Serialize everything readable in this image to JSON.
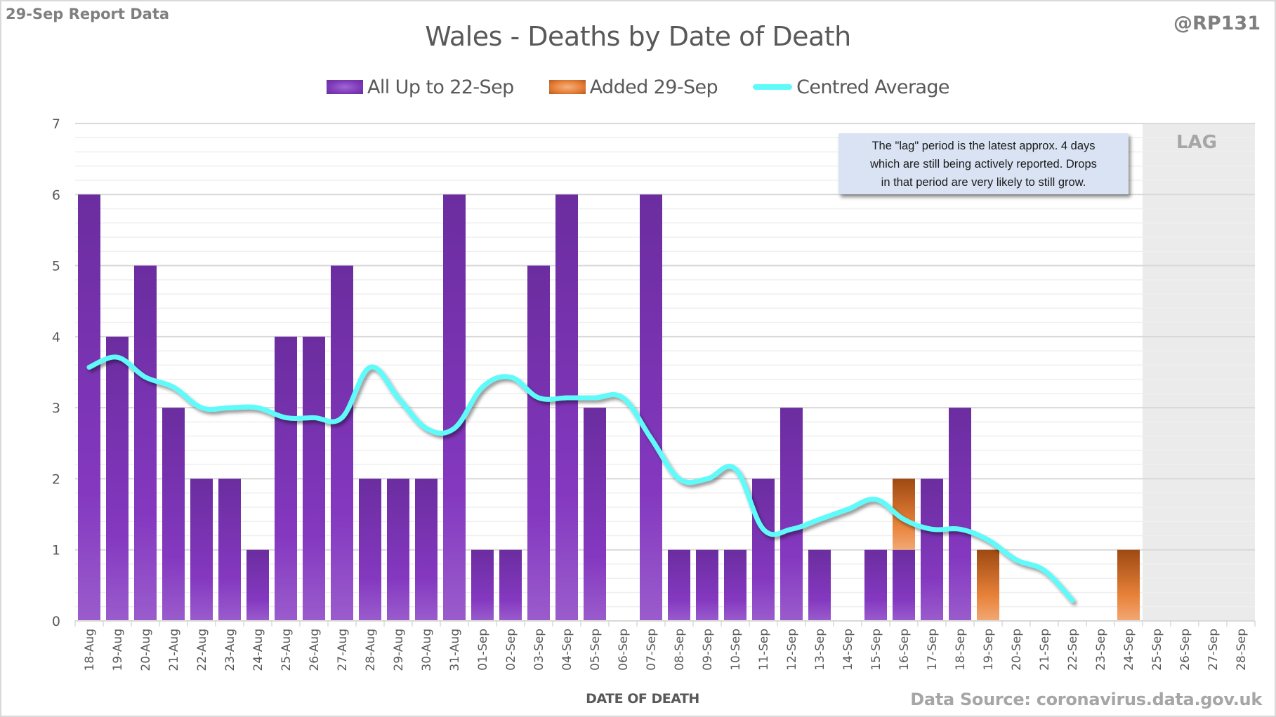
{
  "header": {
    "report_label": "29-Sep Report Data",
    "handle": "@RP131"
  },
  "footer": {
    "source": "Data Source: coronavirus.data.gov.uk"
  },
  "colors": {
    "purple": "#7e3ab8",
    "orange": "#e8813a",
    "cyan": "#5ffbfb",
    "lag_band": "#ebebeb",
    "note_bg": "#dae3f3"
  },
  "chart_data": {
    "type": "bar",
    "stacked": true,
    "title": "Wales - Deaths by Date of Death",
    "xlabel": "DATE OF DEATH",
    "ylabel": "",
    "ylim": [
      0,
      7
    ],
    "yticks": [
      0,
      1,
      2,
      3,
      4,
      5,
      6,
      7
    ],
    "grid": true,
    "minor_grid_step": 0.2,
    "legend_position": "top-center",
    "categories": [
      "18-Aug",
      "19-Aug",
      "20-Aug",
      "21-Aug",
      "22-Aug",
      "23-Aug",
      "24-Aug",
      "25-Aug",
      "26-Aug",
      "27-Aug",
      "28-Aug",
      "29-Aug",
      "30-Aug",
      "31-Aug",
      "01-Sep",
      "02-Sep",
      "03-Sep",
      "04-Sep",
      "05-Sep",
      "06-Sep",
      "07-Sep",
      "08-Sep",
      "09-Sep",
      "10-Sep",
      "11-Sep",
      "12-Sep",
      "13-Sep",
      "14-Sep",
      "15-Sep",
      "16-Sep",
      "17-Sep",
      "18-Sep",
      "19-Sep",
      "20-Sep",
      "21-Sep",
      "22-Sep",
      "23-Sep",
      "24-Sep",
      "25-Sep",
      "26-Sep",
      "27-Sep",
      "28-Sep"
    ],
    "series": [
      {
        "name": "All Up to 22-Sep",
        "kind": "bar",
        "values": [
          6,
          4,
          5,
          3,
          2,
          2,
          1,
          4,
          4,
          5,
          2,
          2,
          2,
          6,
          1,
          1,
          5,
          6,
          3,
          0,
          6,
          1,
          1,
          1,
          2,
          3,
          1,
          0,
          1,
          1,
          2,
          3,
          0,
          0,
          0,
          0,
          0,
          0,
          0,
          0,
          0,
          0
        ]
      },
      {
        "name": "Added 29-Sep",
        "kind": "bar",
        "values": [
          0,
          0,
          0,
          0,
          0,
          0,
          0,
          0,
          0,
          0,
          0,
          0,
          0,
          0,
          0,
          0,
          0,
          0,
          0,
          0,
          0,
          0,
          0,
          0,
          0,
          0,
          0,
          0,
          0,
          1,
          0,
          0,
          1,
          0,
          0,
          0,
          0,
          1,
          0,
          0,
          0,
          0
        ]
      },
      {
        "name": "Centred Average",
        "kind": "line",
        "values": [
          3.57,
          3.71,
          3.43,
          3.29,
          3.0,
          3.0,
          3.0,
          2.86,
          2.86,
          2.86,
          3.57,
          3.14,
          2.71,
          2.71,
          3.29,
          3.43,
          3.14,
          3.14,
          3.14,
          3.14,
          2.57,
          2.0,
          2.0,
          2.14,
          1.29,
          1.29,
          1.43,
          1.57,
          1.71,
          1.43,
          1.29,
          1.29,
          1.14,
          0.86,
          0.71,
          0.29,
          null,
          null,
          null,
          null,
          null,
          null
        ]
      }
    ],
    "lag_region": {
      "from": "25-Sep",
      "to": "28-Sep",
      "label": "LAG"
    },
    "annotation": "The \"lag\" period is the latest approx. 4 days\nwhich are still being actively reported.  Drops\nin that period are very likely to still grow."
  }
}
